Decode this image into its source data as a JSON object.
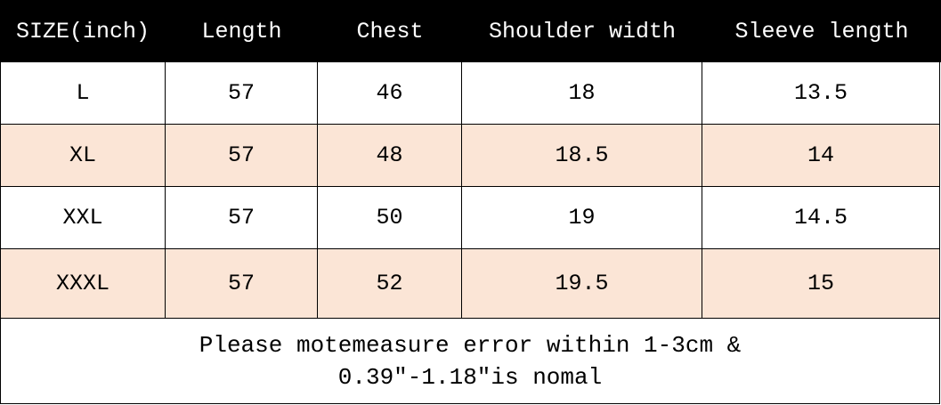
{
  "table": {
    "header": [
      "SIZE(inch)",
      "Length",
      "Chest",
      "Shoulder width",
      "Sleeve length"
    ],
    "rows": [
      [
        "L",
        "57",
        "46",
        "18",
        "13.5"
      ],
      [
        "XL",
        "57",
        "48",
        "18.5",
        "14"
      ],
      [
        "XXL",
        "57",
        "50",
        "19",
        "14.5"
      ],
      [
        "XXXL",
        "57",
        "52",
        "19.5",
        "15"
      ]
    ]
  },
  "footer": [
    "Please motemeasure error within 1-3cm &",
    "0.39″-1.18″is nomal"
  ]
}
